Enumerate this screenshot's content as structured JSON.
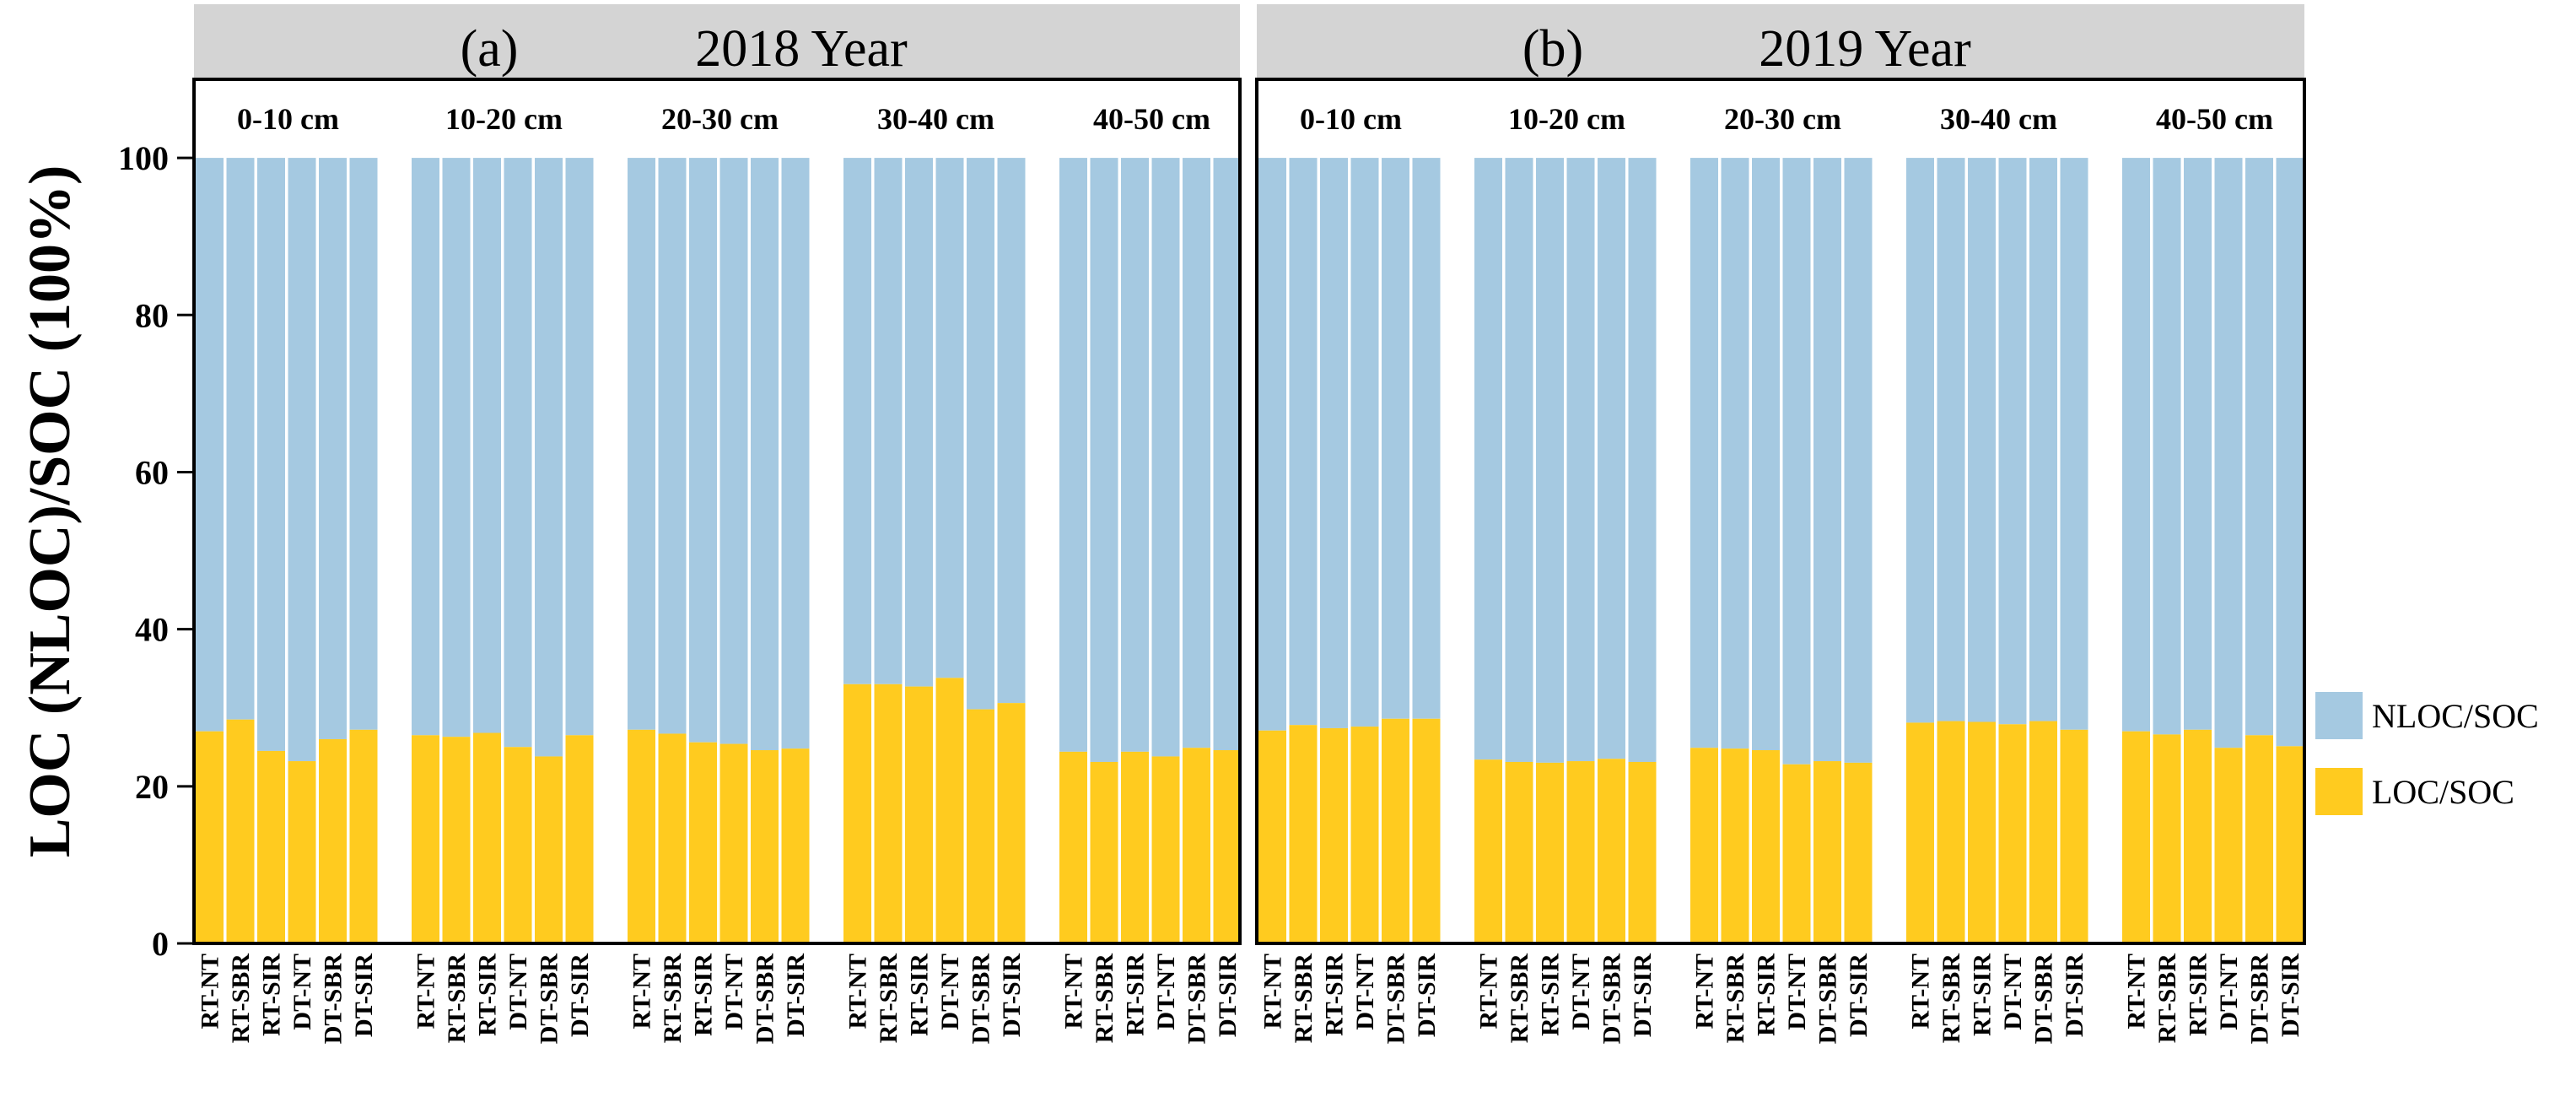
{
  "chart_data": {
    "type": "bar",
    "stacked": true,
    "ylabel": "LOC (NLOC)/SOC (100%)",
    "ylim": [
      0,
      110
    ],
    "yticks": [
      0,
      20,
      40,
      60,
      80,
      100
    ],
    "treatments": [
      "RT-NT",
      "RT-SBR",
      "RT-SIR",
      "DT-NT",
      "DT-SBR",
      "DT-SIR"
    ],
    "depths": [
      "0-10 cm",
      "10-20 cm",
      "20-30 cm",
      "30-40 cm",
      "40-50 cm"
    ],
    "colors": {
      "loc": "#FFCB1F",
      "nloc": "#A5C9E1",
      "header": "#D4D4D4"
    },
    "legend": [
      {
        "key": "nloc",
        "label": "NLOC/SOC"
      },
      {
        "key": "loc",
        "label": "LOC/SOC"
      }
    ],
    "panels": [
      {
        "tag": "(a)",
        "title": "2018 Year",
        "loc_values": [
          [
            27,
            28.5,
            24.5,
            23.2,
            26,
            27.2
          ],
          [
            26.5,
            26.3,
            26.8,
            25,
            23.8,
            26.5
          ],
          [
            27.2,
            26.7,
            25.6,
            25.4,
            24.6,
            24.8
          ],
          [
            33,
            33,
            32.7,
            33.8,
            29.8,
            30.6
          ],
          [
            24.4,
            23.1,
            24.4,
            23.8,
            24.9,
            24.6
          ]
        ]
      },
      {
        "tag": "(b)",
        "title": "2019 Year",
        "loc_values": [
          [
            27.1,
            27.8,
            27.4,
            27.6,
            28.6,
            28.6
          ],
          [
            23.4,
            23.1,
            23.0,
            23.2,
            23.5,
            23.1
          ],
          [
            24.9,
            24.8,
            24.6,
            22.8,
            23.2,
            23.0
          ],
          [
            28.1,
            28.3,
            28.2,
            27.9,
            28.3,
            27.2
          ],
          [
            27,
            26.6,
            27.2,
            24.9,
            26.5,
            25.1
          ]
        ]
      }
    ]
  }
}
